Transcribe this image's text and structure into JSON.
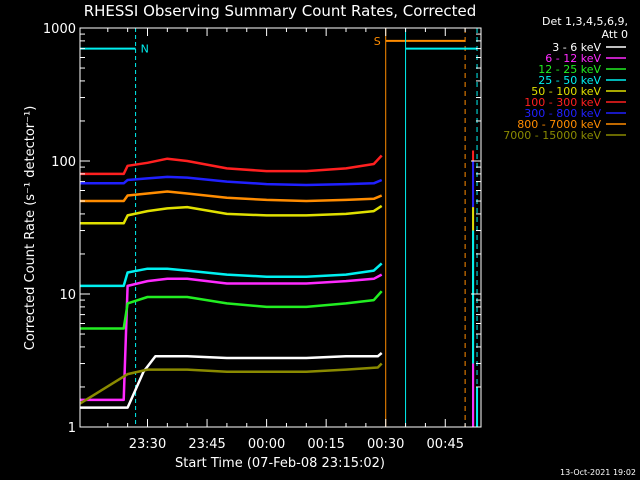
{
  "chart_data": {
    "type": "line",
    "title": "RHESSI Observing Summary Count Rates, Corrected",
    "xlabel": "Start Time (07-Feb-08 23:15:02)",
    "ylabel": "Corrected Count Rate (s⁻¹ detector⁻¹)",
    "yscale": "log",
    "ylim": [
      1,
      1000
    ],
    "xlim_minutes": [
      -17,
      84
    ],
    "x_tick_labels": [
      "23:30",
      "23:45",
      "00:00",
      "00:15",
      "00:30",
      "00:45"
    ],
    "x_tick_minutes": [
      0,
      15,
      30,
      45,
      60,
      75
    ],
    "y_tick_labels": [
      "1",
      "10",
      "100",
      "1000"
    ],
    "y_tick_values": [
      1,
      10,
      100,
      1000
    ],
    "legend_header": [
      "Det 1,3,4,5,6,9,",
      "Att 0"
    ],
    "grid": false,
    "legend_position": "right",
    "series": [
      {
        "name": "3 - 6 keV",
        "color": "#ffffff",
        "x": [
          -17,
          -5,
          -1,
          2,
          5,
          10,
          20,
          30,
          40,
          50,
          58,
          59
        ],
        "y": [
          1.4,
          1.4,
          2.6,
          3.4,
          3.4,
          3.4,
          3.3,
          3.3,
          3.3,
          3.4,
          3.4,
          3.6
        ]
      },
      {
        "name": "6 - 12 keV",
        "color": "#ff2aff",
        "x": [
          -17,
          -6,
          -5,
          0,
          5,
          10,
          20,
          30,
          40,
          50,
          57,
          59
        ],
        "y": [
          1.6,
          1.6,
          11.5,
          12.5,
          13.0,
          13.0,
          12.0,
          12.0,
          12.0,
          12.5,
          13.0,
          14.0
        ]
      },
      {
        "name": "12 - 25 keV",
        "color": "#22ee22",
        "x": [
          -17,
          -6,
          -5,
          0,
          5,
          10,
          20,
          30,
          40,
          50,
          57,
          59
        ],
        "y": [
          5.5,
          5.5,
          8.5,
          9.5,
          9.5,
          9.5,
          8.5,
          8.0,
          8.0,
          8.5,
          9.0,
          10.5
        ]
      },
      {
        "name": "25 - 50 keV",
        "color": "#00f0f0",
        "x": [
          -17,
          -6,
          -5,
          0,
          5,
          10,
          20,
          30,
          40,
          50,
          57,
          59
        ],
        "y": [
          11.5,
          11.5,
          14.5,
          15.5,
          15.5,
          15.0,
          14.0,
          13.5,
          13.5,
          14.0,
          15.0,
          17.0
        ]
      },
      {
        "name": "50 - 100 keV",
        "color": "#e0e000",
        "x": [
          -17,
          -6,
          -5,
          0,
          5,
          10,
          20,
          30,
          40,
          50,
          57,
          59
        ],
        "y": [
          34,
          34,
          39,
          42,
          44,
          45,
          40,
          39,
          39,
          40,
          42,
          46
        ]
      },
      {
        "name": "100 - 300 keV",
        "color": "#ff2020",
        "x": [
          -17,
          -6,
          -5,
          0,
          5,
          10,
          20,
          30,
          40,
          50,
          57,
          59
        ],
        "y": [
          80,
          80,
          92,
          97,
          104,
          100,
          88,
          84,
          84,
          88,
          95,
          110
        ]
      },
      {
        "name": "300 - 800 keV",
        "color": "#2020ff",
        "x": [
          -17,
          -6,
          -5,
          0,
          5,
          10,
          20,
          30,
          40,
          50,
          57,
          59
        ],
        "y": [
          68,
          68,
          72,
          74,
          76,
          75,
          70,
          67,
          66,
          67,
          68,
          72
        ]
      },
      {
        "name": "800 - 7000 keV",
        "color": "#ff8c00",
        "x": [
          -17,
          -6,
          -5,
          0,
          5,
          10,
          20,
          30,
          40,
          50,
          57,
          59
        ],
        "y": [
          50,
          50,
          55,
          57,
          59,
          57,
          53,
          51,
          50,
          51,
          52,
          55
        ]
      },
      {
        "name": "7000 - 15000 keV",
        "color": "#8a8a00",
        "x": [
          -17,
          -5,
          0,
          10,
          20,
          30,
          40,
          50,
          58,
          59
        ],
        "y": [
          1.5,
          2.5,
          2.7,
          2.7,
          2.6,
          2.6,
          2.6,
          2.7,
          2.8,
          3.0
        ]
      }
    ],
    "spikes": [
      {
        "color": "#ff2020",
        "x": 82,
        "y": 120
      },
      {
        "color": "#2020ff",
        "x": 82,
        "y": 100
      },
      {
        "color": "#e0e000",
        "x": 82,
        "y": 45
      },
      {
        "color": "#00f0f0",
        "x": 82,
        "y": 30
      },
      {
        "color": "#ff2aff",
        "x": 82,
        "y": 3
      },
      {
        "color": "#00f0f0",
        "x": 83,
        "y": 2
      }
    ],
    "annotations": [
      {
        "label": "N",
        "color": "#00f0f0",
        "bar_x_start": -17,
        "bar_x_end": -3,
        "bar_y": 700,
        "line_x": -3
      },
      {
        "label": "S",
        "color": "#ff8c00",
        "bar_x_start": 60,
        "bar_x_end": 80,
        "bar_y": 800,
        "line_x": 60,
        "dash_x": 80
      },
      {
        "label": "",
        "color": "#00f0f0",
        "bar_x_start": 65,
        "bar_x_end": 83,
        "bar_y": 700,
        "line_x": 65,
        "dash_x": 83
      }
    ]
  },
  "footer": {
    "date": "13-Oct-2021 19:02"
  }
}
